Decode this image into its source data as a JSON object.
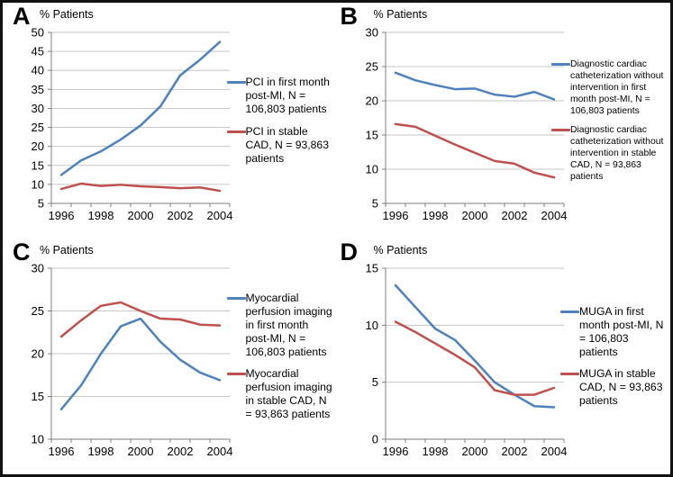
{
  "figure": {
    "background": "#ffffff",
    "border_color": "#121212",
    "grid_color": "#c6c6c6",
    "axis_color": "#7f7f7f",
    "text_color": "#000000",
    "series_colors": {
      "post_mi_blue": "#4f81bd",
      "stable_cad_red": "#c0504d"
    }
  },
  "chart_data": [
    {
      "type": "line",
      "panel": "A",
      "ylabel": "% Patients",
      "x": [
        1996,
        1997,
        1998,
        1999,
        2000,
        2001,
        2002,
        2003,
        2004
      ],
      "xtick_labels": [
        1996,
        1998,
        2000,
        2002,
        2004
      ],
      "ylim": [
        5,
        50
      ],
      "ytick_step": 5,
      "grid": true,
      "legend_position": "right",
      "series": [
        {
          "name": "PCI in first month post-MI, N = 106,803 patients",
          "color": "#4f81bd",
          "values": [
            12.5,
            16.3,
            18.7,
            21.8,
            25.5,
            30.5,
            38.7,
            42.8,
            47.5
          ]
        },
        {
          "name": "PCI in stable CAD, N = 93,863 patients",
          "color": "#c0504d",
          "values": [
            8.8,
            10.2,
            9.6,
            9.9,
            9.5,
            9.3,
            9.0,
            9.2,
            8.3
          ]
        }
      ]
    },
    {
      "type": "line",
      "panel": "B",
      "ylabel": "% Patients",
      "x": [
        1996,
        1997,
        1998,
        1999,
        2000,
        2001,
        2002,
        2003,
        2004
      ],
      "xtick_labels": [
        1996,
        1998,
        2000,
        2002,
        2004
      ],
      "ylim": [
        5,
        30
      ],
      "ytick_step": 5,
      "grid": true,
      "legend_position": "right",
      "series": [
        {
          "name": "Diagnostic cardiac catheterization without intervention in first month post-MI, N = 106,803 patients",
          "color": "#4f81bd",
          "values": [
            24.1,
            23.0,
            22.3,
            21.7,
            21.8,
            20.9,
            20.6,
            21.3,
            20.2
          ]
        },
        {
          "name": "Diagnostic cardiac catheterization without intervention in stable CAD, N = 93,863 patients",
          "color": "#c0504d",
          "values": [
            16.6,
            16.2,
            14.9,
            13.6,
            12.4,
            11.2,
            10.8,
            9.5,
            8.8
          ]
        }
      ]
    },
    {
      "type": "line",
      "panel": "C",
      "ylabel": "% Patients",
      "x": [
        1996,
        1997,
        1998,
        1999,
        2000,
        2001,
        2002,
        2003,
        2004
      ],
      "xtick_labels": [
        1996,
        1998,
        2000,
        2002,
        2004
      ],
      "ylim": [
        10,
        30
      ],
      "ytick_step": 5,
      "grid": true,
      "legend_position": "right",
      "series": [
        {
          "name": "Myocardial perfusion imaging in first month post-MI, N = 106,803 patients",
          "color": "#4f81bd",
          "values": [
            13.5,
            16.3,
            20.0,
            23.2,
            24.1,
            21.4,
            19.3,
            17.8,
            16.9
          ]
        },
        {
          "name": "Myocardial perfusion imaging in stable CAD, N = 93,863 patients",
          "color": "#c0504d",
          "values": [
            22.0,
            23.9,
            25.6,
            26.0,
            25.0,
            24.1,
            24.0,
            23.4,
            23.3
          ]
        }
      ]
    },
    {
      "type": "line",
      "panel": "D",
      "ylabel": "% Patients",
      "x": [
        1996,
        1997,
        1998,
        1999,
        2000,
        2001,
        2002,
        2003,
        2004
      ],
      "xtick_labels": [
        1996,
        1998,
        2000,
        2002,
        2004
      ],
      "ylim": [
        0,
        15
      ],
      "ytick_step": 5,
      "grid": true,
      "legend_position": "right",
      "series": [
        {
          "name": "MUGA in first month post-MI, N = 106,803 patients",
          "color": "#4f81bd",
          "values": [
            13.5,
            11.6,
            9.7,
            8.7,
            6.9,
            5.0,
            3.9,
            2.9,
            2.8
          ]
        },
        {
          "name": "MUGA in stable CAD, N = 93,863 patients",
          "color": "#c0504d",
          "values": [
            10.3,
            9.4,
            8.4,
            7.4,
            6.3,
            4.3,
            3.9,
            3.9,
            4.5
          ]
        }
      ]
    }
  ]
}
